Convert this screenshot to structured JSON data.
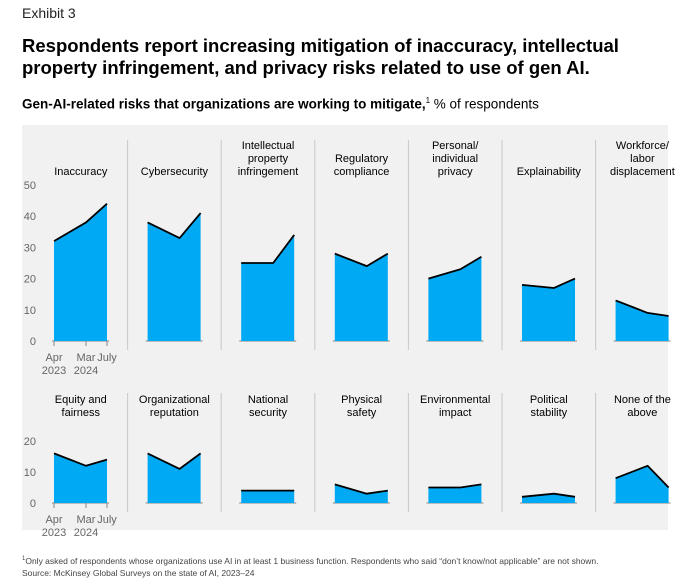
{
  "header": {
    "exhibit": "Exhibit 3",
    "title": "Respondents report increasing mitigation of inaccuracy, intellectual property infringement, and privacy risks related to use of gen AI.",
    "subtitle_bold": "Gen-AI-related risks that organizations are working to mitigate,",
    "subtitle_sup": "1",
    "subtitle_rest": " % of respondents"
  },
  "colors": {
    "fill": "#00a9f4",
    "line": "#000000",
    "panel": "#f1f1f1",
    "divider": "#c8c8c8",
    "axis": "#888888"
  },
  "chart_data": {
    "type": "area",
    "x_ticks": [
      {
        "label": "Apr",
        "sub": "2023"
      },
      {
        "label": "Mar",
        "sub": "2024"
      },
      {
        "label": "July",
        "sub": ""
      }
    ],
    "rows": [
      {
        "ylim": [
          0,
          50
        ],
        "yticks": [
          0,
          10,
          20,
          30,
          40,
          50
        ],
        "series": [
          {
            "name": "Inaccuracy",
            "values": [
              32,
              38,
              44
            ]
          },
          {
            "name": "Cybersecurity",
            "values": [
              38,
              33,
              41
            ]
          },
          {
            "name": "Intellectual property infringement",
            "values": [
              25,
              25,
              34
            ]
          },
          {
            "name": "Regulatory compliance",
            "values": [
              28,
              24,
              28
            ]
          },
          {
            "name": "Personal/ individual privacy",
            "values": [
              20,
              23,
              27
            ]
          },
          {
            "name": "Explainability",
            "values": [
              18,
              17,
              20
            ]
          },
          {
            "name": "Workforce/ labor displacement",
            "values": [
              13,
              9,
              8
            ]
          }
        ]
      },
      {
        "ylim": [
          0,
          20
        ],
        "yticks": [
          0,
          10,
          20
        ],
        "series": [
          {
            "name": "Equity and fairness",
            "values": [
              16,
              12,
              14
            ]
          },
          {
            "name": "Organizational reputation",
            "values": [
              16,
              11,
              16
            ]
          },
          {
            "name": "National security",
            "values": [
              4,
              4,
              4
            ]
          },
          {
            "name": "Physical safety",
            "values": [
              6,
              3,
              4
            ]
          },
          {
            "name": "Environmental impact",
            "values": [
              5,
              5,
              6
            ]
          },
          {
            "name": "Political stability",
            "values": [
              2,
              3,
              2
            ]
          },
          {
            "name": "None of the above",
            "values": [
              8,
              12,
              5
            ]
          }
        ]
      }
    ]
  },
  "footnotes": {
    "sup": "1",
    "note": "Only asked of respondents whose organizations use AI in at least 1 business function. Respondents who said “don’t know/not applicable” are not shown.",
    "source": "Source: McKinsey Global Surveys on the state of AI, 2023–24"
  }
}
